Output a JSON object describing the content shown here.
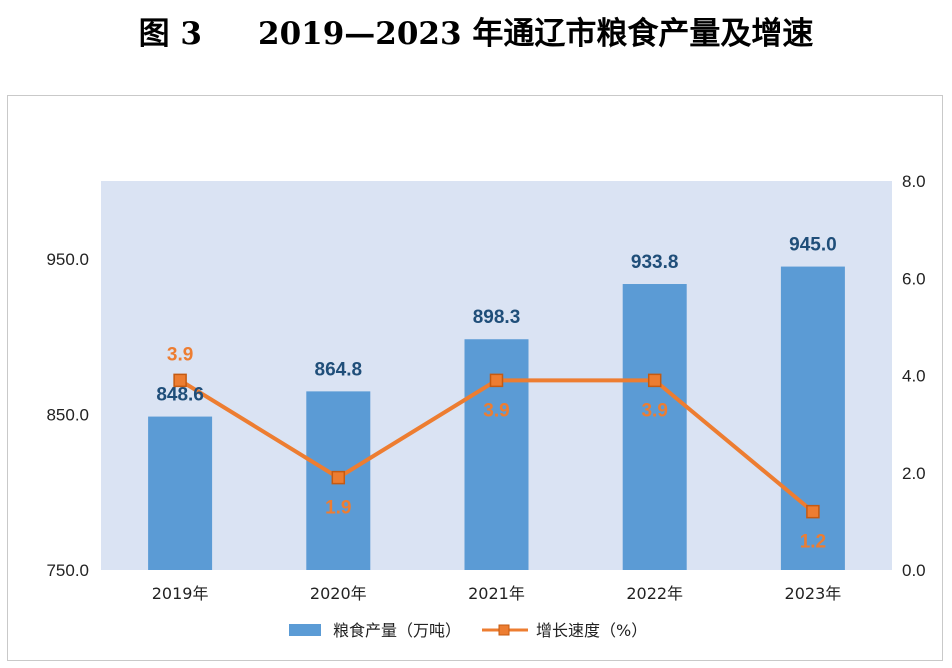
{
  "header": {
    "figure_no": "图 3",
    "title": "2019—2023 年通辽市粮食产量及增速"
  },
  "colors": {
    "bar": "#5b9bd5",
    "line": "#ed7d31",
    "plot_bg": "#dae3f3",
    "bar_label": "#1f4e79"
  },
  "chart_data": {
    "type": "bar",
    "categories": [
      "2019年",
      "2020年",
      "2021年",
      "2022年",
      "2023年"
    ],
    "series": [
      {
        "name": "粮食产量（万吨）",
        "type": "bar",
        "axis": "left",
        "values": [
          848.6,
          864.8,
          898.3,
          933.8,
          945.0
        ],
        "labels": [
          "848.6",
          "864.8",
          "898.3",
          "933.8",
          "945.0"
        ]
      },
      {
        "name": "增长速度（%）",
        "type": "line",
        "axis": "right",
        "values": [
          3.9,
          1.9,
          3.9,
          3.9,
          1.2
        ],
        "labels": [
          "3.9",
          "1.9",
          "3.9",
          "3.9",
          "1.2"
        ]
      }
    ],
    "y_left": {
      "min": 750,
      "max": 1000,
      "ticks": [
        "750.0",
        "850.0",
        "950.0"
      ]
    },
    "y_right": {
      "min": 0,
      "max": 8,
      "ticks": [
        "0.0",
        "2.0",
        "4.0",
        "6.0",
        "8.0"
      ]
    },
    "legend_position": "bottom",
    "grid": false
  }
}
